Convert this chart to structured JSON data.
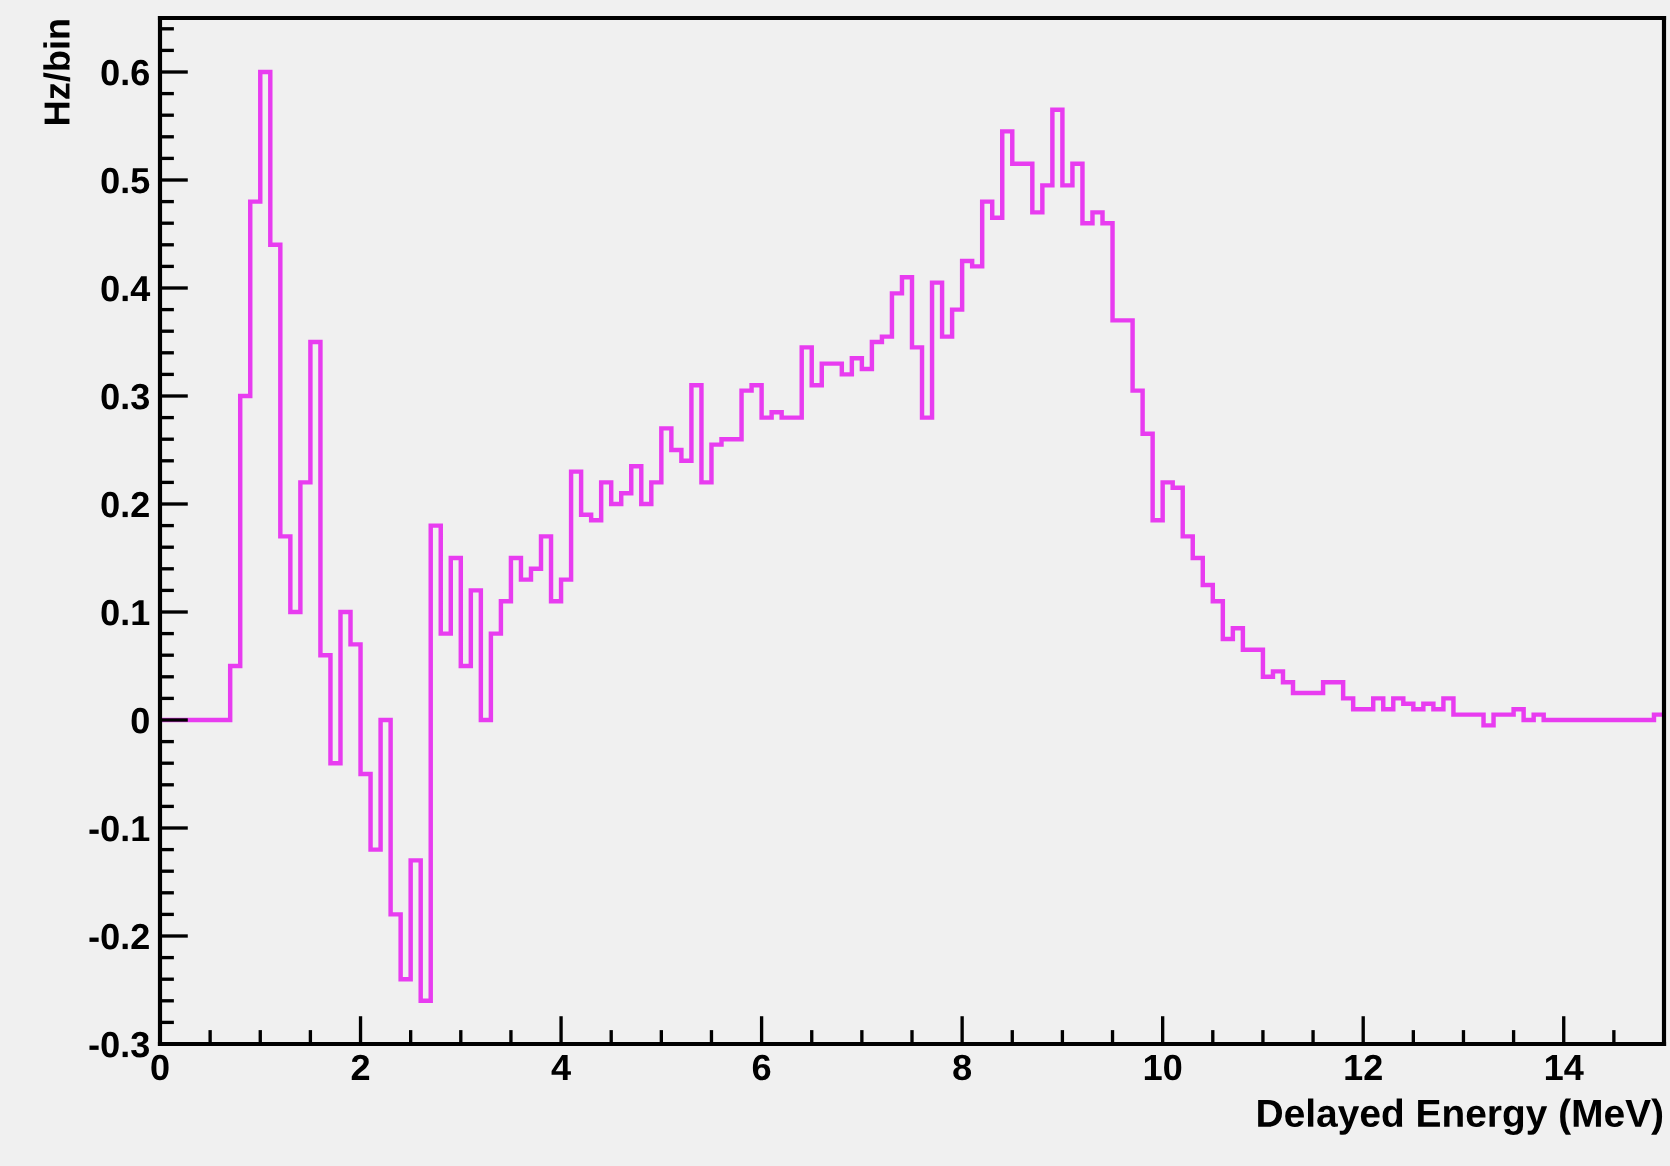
{
  "chart_data": {
    "type": "histogram",
    "xlabel": "Delayed Energy (MeV)",
    "ylabel": "Hz/bin",
    "color": "#e83cf0",
    "bins": [
      0,
      0.1,
      0.2,
      0.3,
      0.4,
      0.5,
      0.6,
      0.7,
      0.8,
      0.9,
      1,
      1.1,
      1.2,
      1.3,
      1.4,
      1.5,
      1.6,
      1.7,
      1.8,
      1.9,
      2,
      2.1,
      2.2,
      2.3,
      2.4,
      2.5,
      2.6,
      2.7,
      2.8,
      2.9,
      3,
      3.1,
      3.2,
      3.3,
      3.4,
      3.5,
      3.6,
      3.7,
      3.8,
      3.9,
      4,
      4.1,
      4.2,
      4.3,
      4.4,
      4.5,
      4.6,
      4.7,
      4.8,
      4.9,
      5,
      5.1,
      5.2,
      5.3,
      5.4,
      5.5,
      5.6,
      5.7,
      5.8,
      5.9,
      6,
      6.1,
      6.2,
      6.3,
      6.4,
      6.5,
      6.6,
      6.7,
      6.8,
      6.9,
      7,
      7.1,
      7.2,
      7.3,
      7.4,
      7.5,
      7.6,
      7.7,
      7.8,
      7.9,
      8,
      8.1,
      8.2,
      8.3,
      8.4,
      8.5,
      8.6,
      8.7,
      8.8,
      8.9,
      9,
      9.1,
      9.2,
      9.3,
      9.4,
      9.5,
      9.6,
      9.7,
      9.8,
      9.9,
      10,
      10.1,
      10.2,
      10.3,
      10.4,
      10.5,
      10.6,
      10.7,
      10.8,
      10.9,
      11,
      11.1,
      11.2,
      11.3,
      11.4,
      11.5,
      11.6,
      11.7,
      11.8,
      11.9,
      12,
      12.1,
      12.2,
      12.3,
      12.4,
      12.5,
      12.6,
      12.7,
      12.8,
      12.9,
      13,
      13.1,
      13.2,
      13.3,
      13.4,
      13.5,
      13.6,
      13.7,
      13.8,
      13.9,
      14,
      14.1,
      14.2,
      14.3,
      14.4,
      14.5,
      14.6,
      14.7,
      14.8,
      14.9,
      15
    ],
    "values": [
      0,
      0,
      0,
      0,
      0,
      0,
      0,
      0.05,
      0.3,
      0.48,
      0.6,
      0.44,
      0.17,
      0.1,
      0.22,
      0.35,
      0.06,
      -0.04,
      0.1,
      0.07,
      -0.05,
      -0.12,
      0,
      -0.18,
      -0.24,
      -0.13,
      -0.26,
      0.18,
      0.08,
      0.15,
      0.05,
      0.12,
      0,
      0.08,
      0.11,
      0.15,
      0.13,
      0.14,
      0.17,
      0.11,
      0.13,
      0.23,
      0.19,
      0.185,
      0.22,
      0.2,
      0.21,
      0.235,
      0.2,
      0.22,
      0.27,
      0.25,
      0.24,
      0.31,
      0.22,
      0.255,
      0.26,
      0.26,
      0.305,
      0.31,
      0.28,
      0.285,
      0.28,
      0.28,
      0.345,
      0.31,
      0.33,
      0.33,
      0.32,
      0.335,
      0.325,
      0.35,
      0.355,
      0.395,
      0.41,
      0.345,
      0.28,
      0.405,
      0.355,
      0.38,
      0.425,
      0.42,
      0.48,
      0.465,
      0.545,
      0.515,
      0.515,
      0.47,
      0.495,
      0.565,
      0.495,
      0.515,
      0.46,
      0.47,
      0.46,
      0.37,
      0.37,
      0.305,
      0.265,
      0.185,
      0.22,
      0.215,
      0.17,
      0.15,
      0.125,
      0.11,
      0.075,
      0.085,
      0.065,
      0.065,
      0.04,
      0.045,
      0.035,
      0.025,
      0.025,
      0.025,
      0.035,
      0.035,
      0.02,
      0.01,
      0.01,
      0.02,
      0.01,
      0.02,
      0.015,
      0.01,
      0.015,
      0.01,
      0.02,
      0.005,
      0.005,
      0.005,
      -0.005,
      0.005,
      0.005,
      0.01,
      0,
      0.005,
      0,
      0,
      0,
      0,
      0,
      0,
      0,
      0,
      0,
      0,
      0,
      0.005
    ],
    "xlim": [
      0,
      15
    ],
    "xticks": [
      0,
      2,
      4,
      6,
      8,
      10,
      12,
      14
    ],
    "ylim": [
      -0.3,
      0.65
    ],
    "yticks": [
      -0.3,
      -0.2,
      -0.1,
      0,
      0.1,
      0.2,
      0.3,
      0.4,
      0.5,
      0.6
    ]
  }
}
